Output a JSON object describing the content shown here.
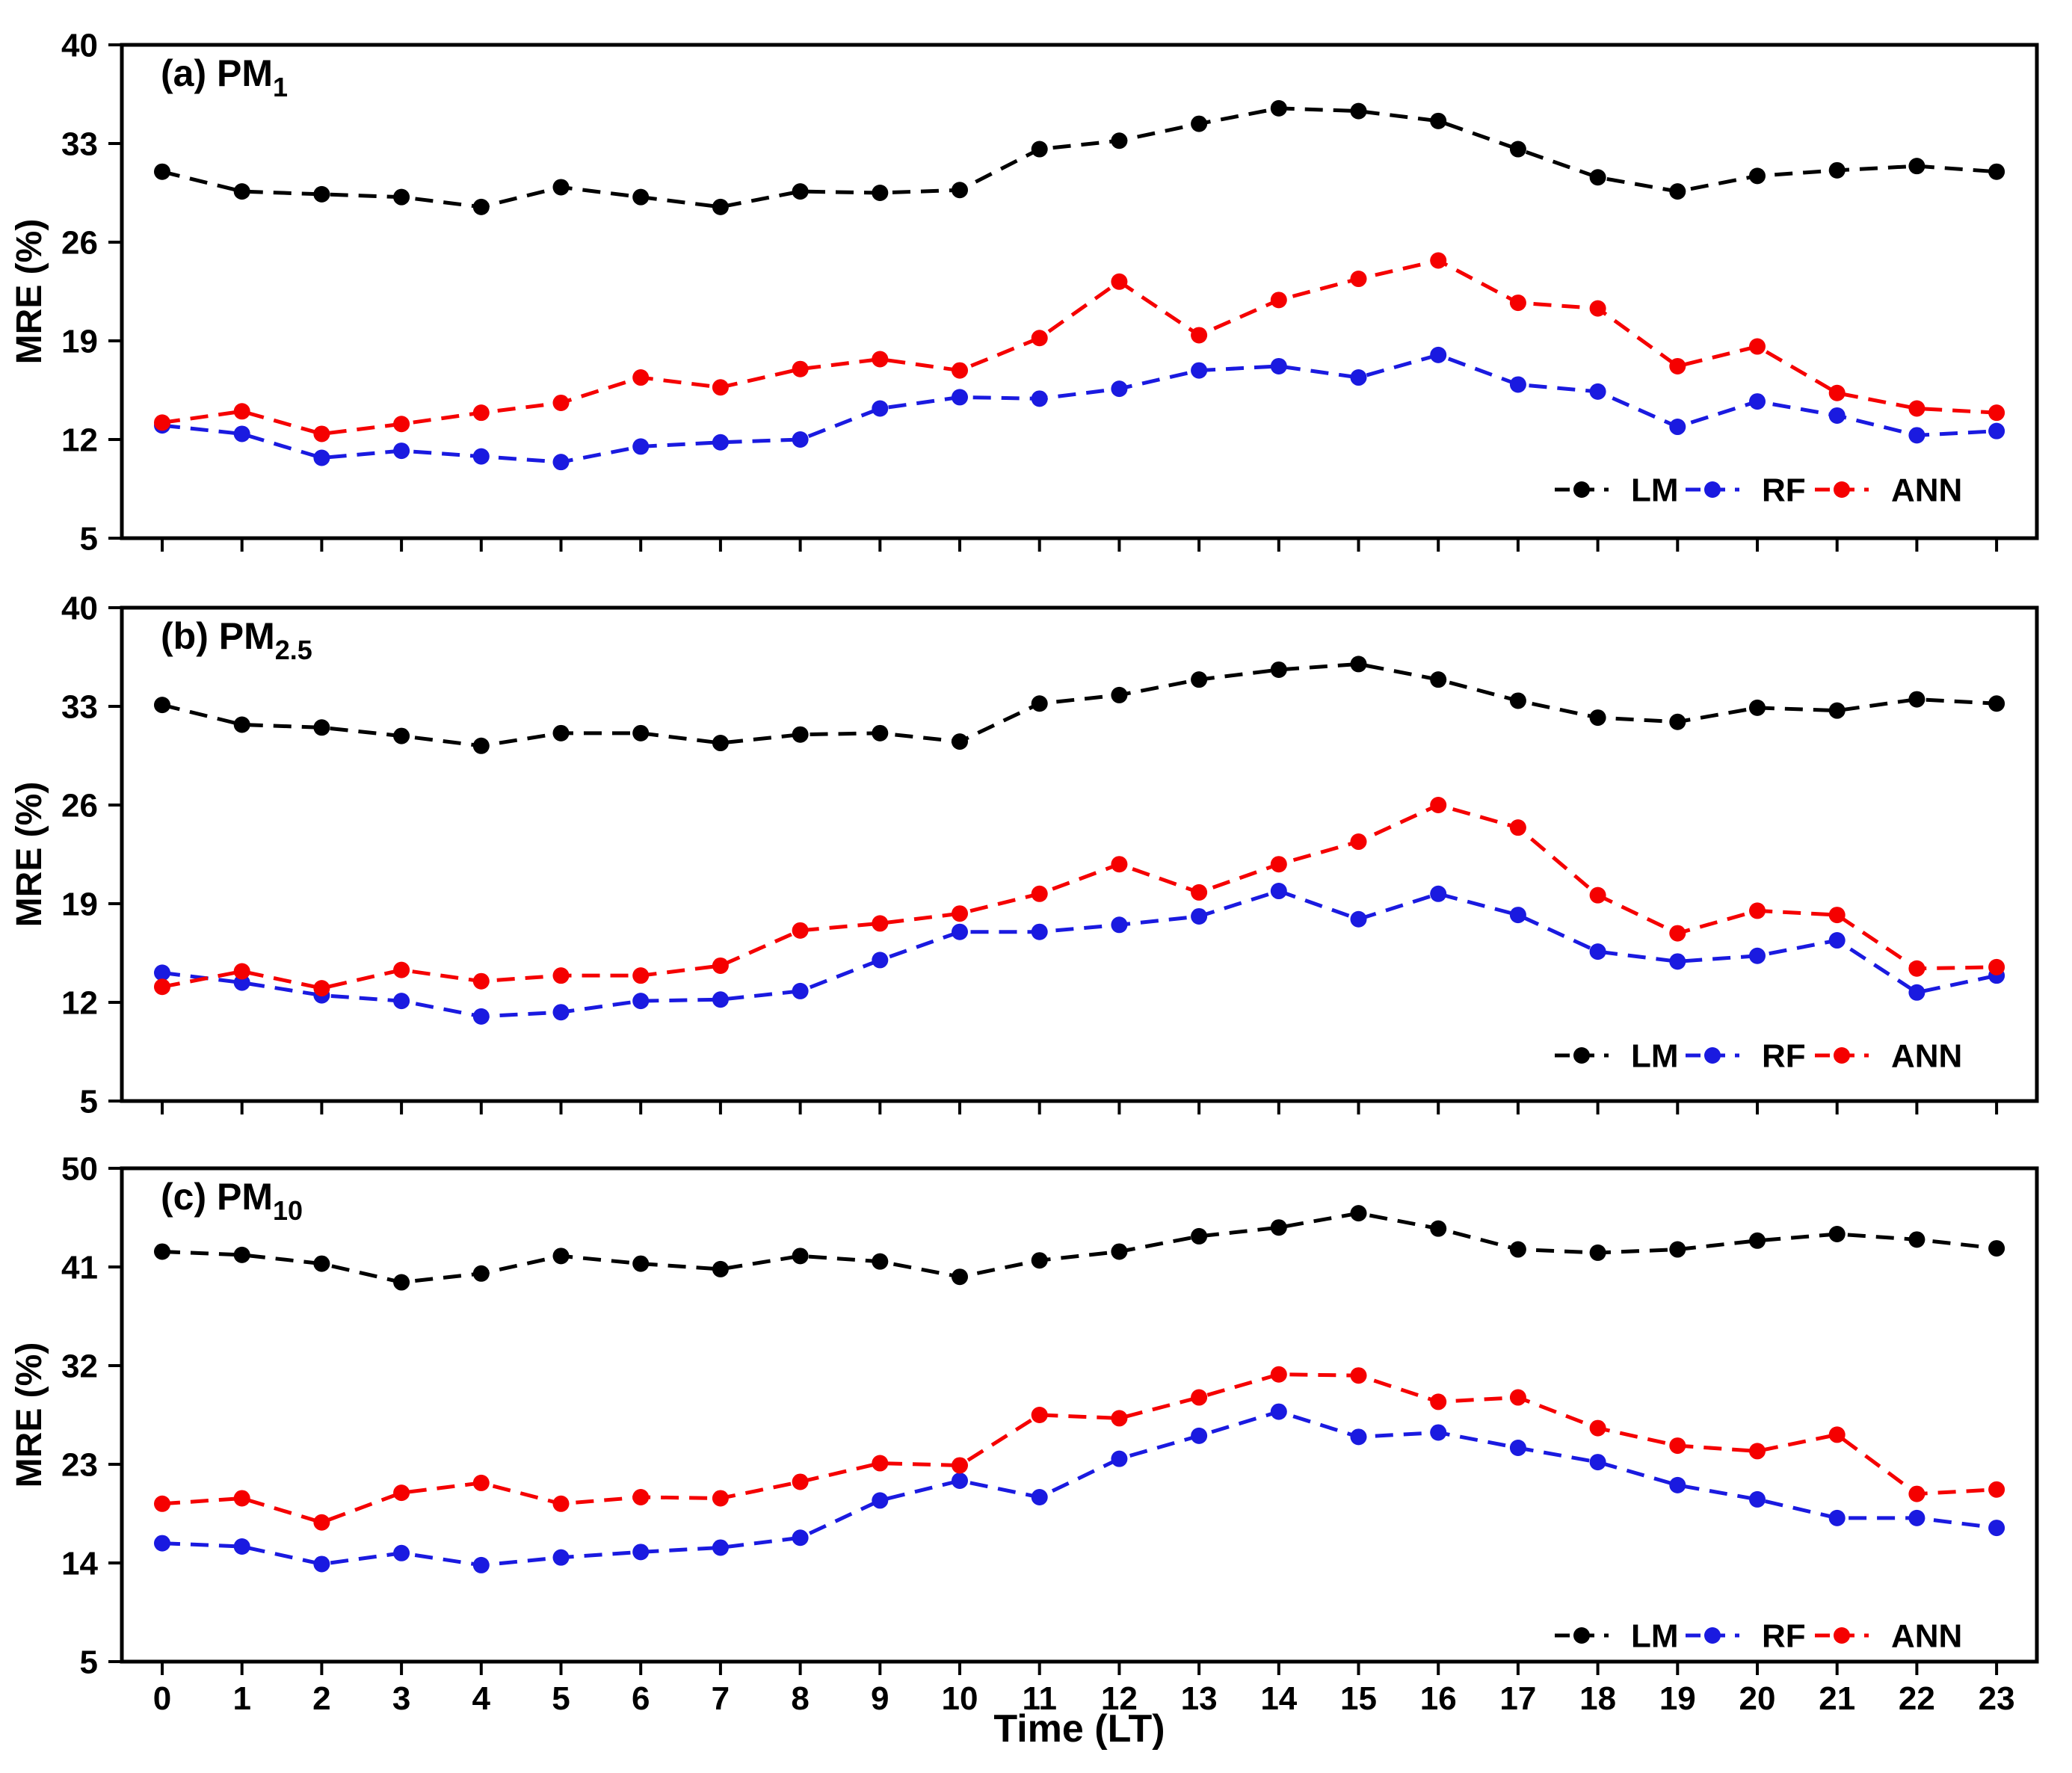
{
  "figure": {
    "xlabel": "Time (LT)",
    "ylabel": "MRE (%)",
    "legend_labels": [
      "LM",
      "RF",
      "ANN"
    ],
    "colors": {
      "LM": "#000000",
      "RF": "#1a1ae0",
      "ANN": "#f50000"
    }
  },
  "chart_data": [
    {
      "type": "line",
      "panel": "a",
      "title_prefix": "(a) PM",
      "title_sub": "1",
      "ylabel": "MRE (%)",
      "ylim": [
        5,
        40
      ],
      "yticks": [
        5,
        12,
        19,
        26,
        33,
        40
      ],
      "x": [
        0,
        1,
        2,
        3,
        4,
        5,
        6,
        7,
        8,
        9,
        10,
        11,
        12,
        13,
        14,
        15,
        16,
        17,
        18,
        19,
        20,
        21,
        22,
        23
      ],
      "show_x_tick_labels": false,
      "grid": false,
      "legend_position": "bottom-right",
      "series": [
        {
          "name": "LM",
          "color": "#000000",
          "values": [
            31.0,
            29.6,
            29.4,
            29.2,
            28.5,
            29.9,
            29.2,
            28.5,
            29.6,
            29.5,
            29.7,
            32.6,
            33.2,
            34.4,
            35.5,
            35.3,
            34.6,
            32.6,
            30.6,
            29.6,
            30.7,
            31.1,
            31.4,
            31.0
          ]
        },
        {
          "name": "RF",
          "color": "#1a1ae0",
          "values": [
            13.0,
            12.4,
            10.7,
            11.2,
            10.8,
            10.4,
            11.5,
            11.8,
            12.0,
            14.2,
            15.0,
            14.9,
            15.6,
            16.9,
            17.2,
            16.4,
            18.0,
            15.9,
            15.4,
            12.9,
            14.7,
            13.7,
            12.3,
            12.6
          ]
        },
        {
          "name": "ANN",
          "color": "#f50000",
          "values": [
            13.2,
            14.0,
            12.4,
            13.1,
            13.9,
            14.6,
            16.4,
            15.7,
            17.0,
            17.7,
            16.9,
            19.2,
            23.2,
            19.4,
            21.9,
            23.4,
            24.7,
            21.7,
            21.3,
            17.2,
            18.6,
            15.3,
            14.2,
            13.9
          ]
        }
      ]
    },
    {
      "type": "line",
      "panel": "b",
      "title_prefix": "(b) PM",
      "title_sub": "2.5",
      "ylabel": "MRE (%)",
      "ylim": [
        5,
        40
      ],
      "yticks": [
        5,
        12,
        19,
        26,
        33,
        40
      ],
      "x": [
        0,
        1,
        2,
        3,
        4,
        5,
        6,
        7,
        8,
        9,
        10,
        11,
        12,
        13,
        14,
        15,
        16,
        17,
        18,
        19,
        20,
        21,
        22,
        23
      ],
      "show_x_tick_labels": false,
      "grid": false,
      "legend_position": "bottom-right",
      "series": [
        {
          "name": "LM",
          "color": "#000000",
          "values": [
            33.1,
            31.7,
            31.5,
            30.9,
            30.2,
            31.1,
            31.1,
            30.4,
            31.0,
            31.1,
            30.5,
            33.2,
            33.8,
            34.9,
            35.6,
            36.0,
            34.9,
            33.4,
            32.2,
            31.9,
            32.9,
            32.7,
            33.5,
            33.2
          ]
        },
        {
          "name": "RF",
          "color": "#1a1ae0",
          "values": [
            14.1,
            13.4,
            12.5,
            12.1,
            11.0,
            11.3,
            12.1,
            12.2,
            12.8,
            15.0,
            17.0,
            17.0,
            17.5,
            18.1,
            19.9,
            17.9,
            19.7,
            18.2,
            15.6,
            14.9,
            15.3,
            16.4,
            12.7,
            13.9
          ]
        },
        {
          "name": "ANN",
          "color": "#f50000",
          "values": [
            13.1,
            14.2,
            13.0,
            14.3,
            13.5,
            13.9,
            13.9,
            14.6,
            17.1,
            17.6,
            18.3,
            19.7,
            21.8,
            19.8,
            21.8,
            23.4,
            26.0,
            24.4,
            19.6,
            16.9,
            18.5,
            18.2,
            14.4,
            14.5
          ]
        }
      ]
    },
    {
      "type": "line",
      "panel": "c",
      "title_prefix": "(c) PM",
      "title_sub": "10",
      "ylabel": "MRE (%)",
      "xlabel": "Time (LT)",
      "ylim": [
        5,
        50
      ],
      "yticks": [
        5,
        14,
        23,
        32,
        41,
        50
      ],
      "x": [
        0,
        1,
        2,
        3,
        4,
        5,
        6,
        7,
        8,
        9,
        10,
        11,
        12,
        13,
        14,
        15,
        16,
        17,
        18,
        19,
        20,
        21,
        22,
        23
      ],
      "show_x_tick_labels": true,
      "grid": false,
      "legend_position": "bottom-right",
      "series": [
        {
          "name": "LM",
          "color": "#000000",
          "values": [
            42.4,
            42.1,
            41.3,
            39.6,
            40.4,
            42.0,
            41.3,
            40.8,
            42.0,
            41.5,
            40.1,
            41.6,
            42.4,
            43.8,
            44.6,
            45.9,
            44.5,
            42.6,
            42.3,
            42.6,
            43.4,
            44.0,
            43.5,
            42.7
          ]
        },
        {
          "name": "RF",
          "color": "#1a1ae0",
          "values": [
            15.8,
            15.5,
            13.9,
            14.9,
            13.8,
            14.5,
            15.0,
            15.4,
            16.3,
            19.7,
            21.5,
            20.0,
            23.5,
            25.6,
            27.8,
            25.5,
            25.9,
            24.5,
            23.2,
            21.1,
            19.8,
            18.1,
            18.1,
            17.2
          ]
        },
        {
          "name": "ANN",
          "color": "#f50000",
          "values": [
            19.4,
            19.9,
            17.7,
            20.4,
            21.3,
            19.4,
            20.0,
            19.9,
            21.4,
            23.1,
            22.9,
            27.5,
            27.2,
            29.1,
            31.2,
            31.1,
            28.7,
            29.1,
            26.3,
            24.7,
            24.2,
            25.7,
            20.3,
            20.7
          ]
        }
      ]
    }
  ]
}
